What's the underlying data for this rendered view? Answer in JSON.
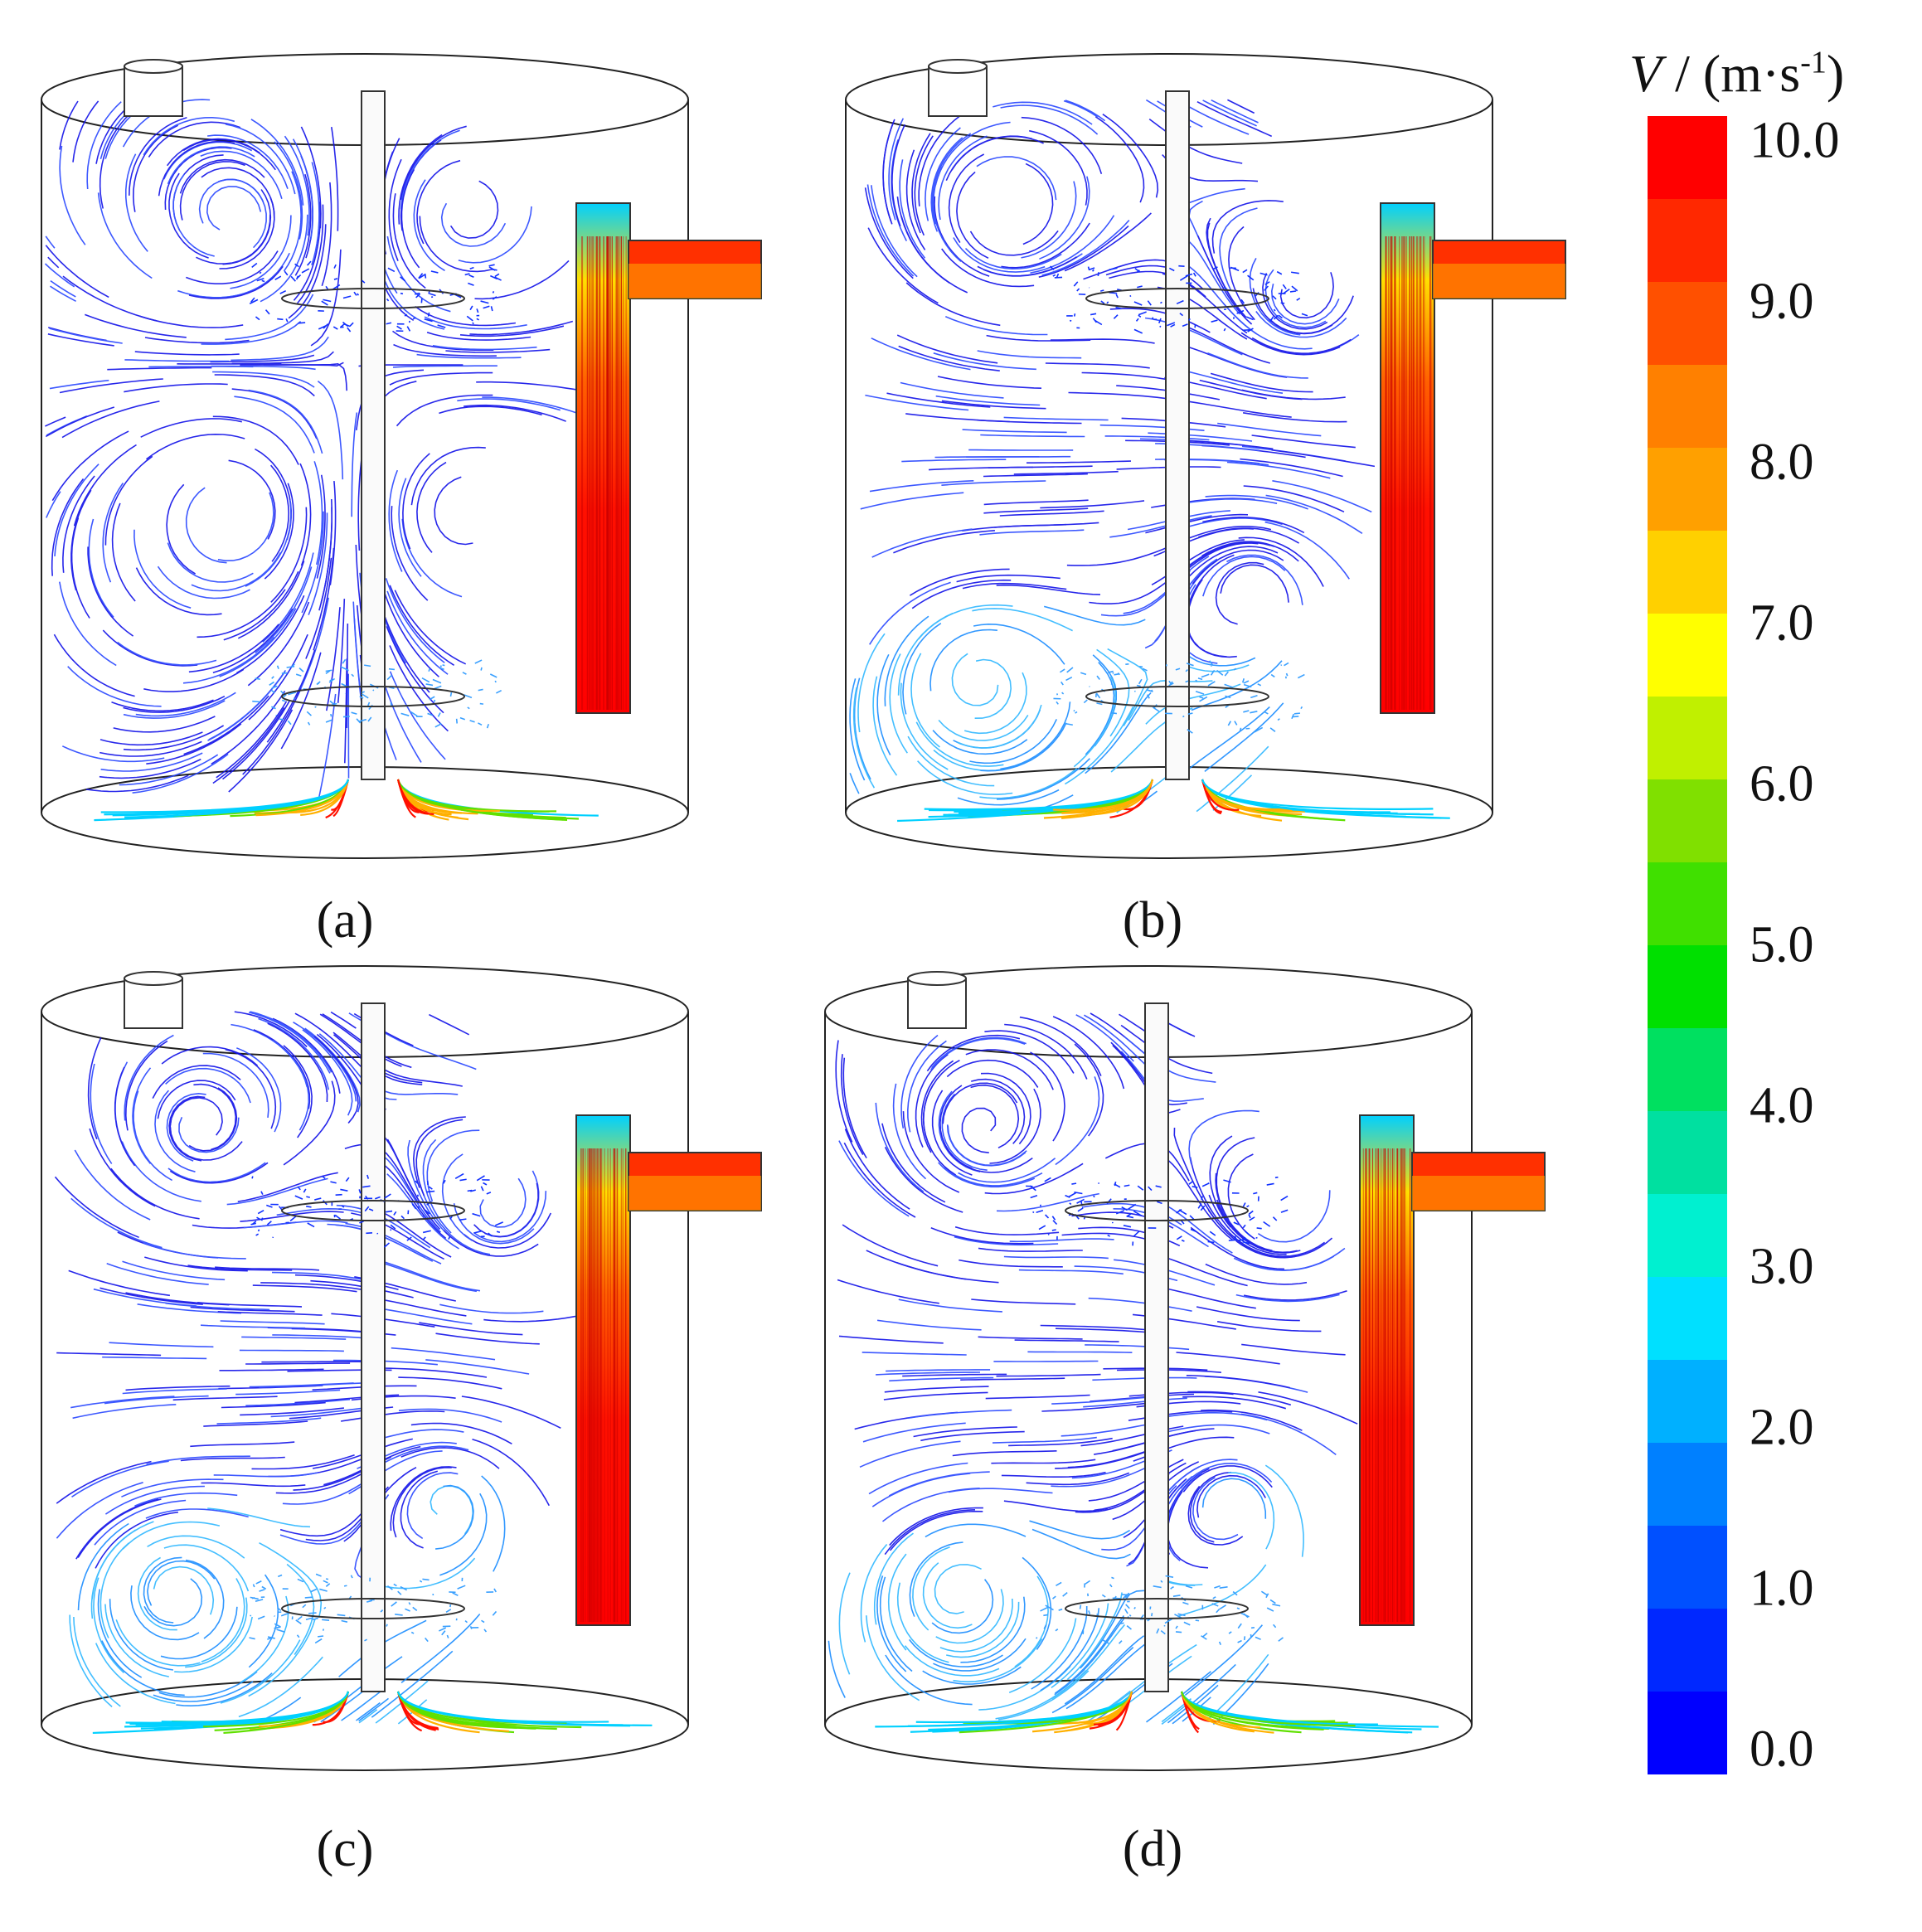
{
  "figure": {
    "panels": [
      {
        "id": "a",
        "caption": "(a)",
        "vortices": "upper-pair"
      },
      {
        "id": "b",
        "caption": "(b)",
        "vortices": "lower-left"
      },
      {
        "id": "c",
        "caption": "(c)",
        "vortices": "lower-left-large"
      },
      {
        "id": "d",
        "caption": "(d)",
        "vortices": "lower-left-large"
      }
    ]
  },
  "legend": {
    "variable": "V",
    "unit_prefix": " / (m·s",
    "unit_exp": "-1",
    "unit_suffix": ")",
    "ticks": [
      "10.0",
      "9.0",
      "8.0",
      "7.0",
      "6.0",
      "5.0",
      "4.0",
      "3.0",
      "2.0",
      "1.0",
      "0.0"
    ],
    "min": 0.0,
    "max": 10.0,
    "colors": [
      "#0000ff",
      "#0028ff",
      "#0050ff",
      "#0080ff",
      "#00b0ff",
      "#00e0ff",
      "#00f0d0",
      "#00e0a0",
      "#00e060",
      "#00e000",
      "#40e000",
      "#80e000",
      "#c0f000",
      "#ffff00",
      "#ffd000",
      "#ffa000",
      "#ff8000",
      "#ff5000",
      "#ff2800",
      "#ff0000"
    ]
  }
}
